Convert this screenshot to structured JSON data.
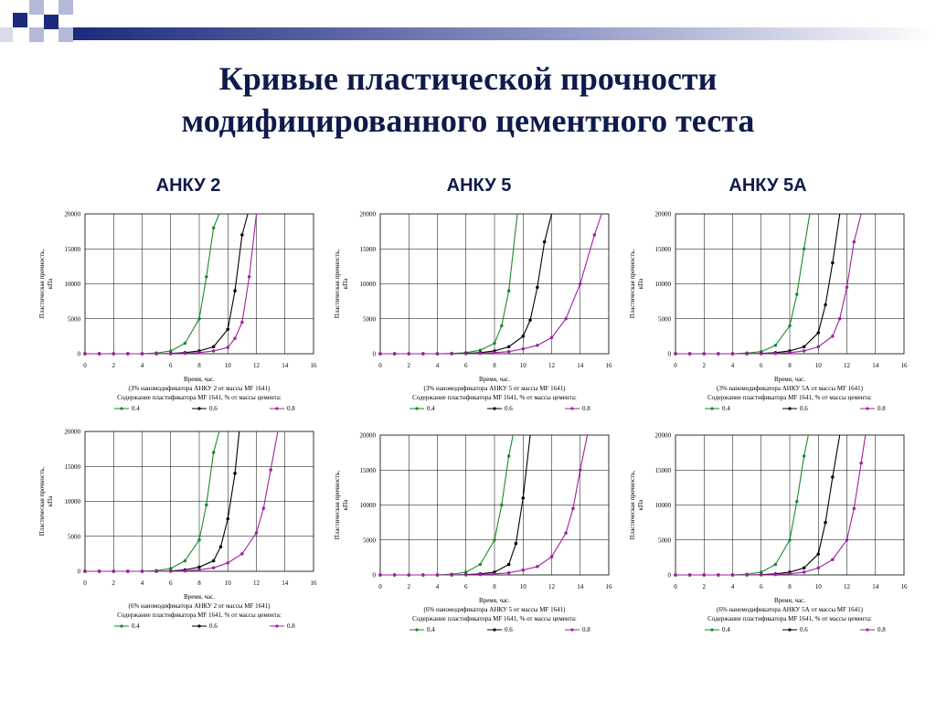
{
  "title_line1": "Кривые пластической прочности",
  "title_line2": "модифицированного цементного теста",
  "columns": [
    "АНКУ 2",
    "АНКУ 5",
    "АНКУ 5А"
  ],
  "colors": {
    "title": "#0f1a4c",
    "deco_blue": "#1c2a7c",
    "deco_light": "#b4b9d8",
    "s04": "#1a8a2a",
    "s06": "#000000",
    "s08": "#a020a0"
  },
  "chart_data": [
    {
      "type": "line",
      "xlabel": "Время, час.",
      "ylabel": "Пластическая прочность, кПа",
      "note": "(3% наномодификатора АНКУ 2 от массы MF 1641)",
      "legend_title": "Содержание пластификатора MF 1641, % от массы цемента:",
      "xlim": [
        0,
        16
      ],
      "ylim": [
        0,
        20000
      ],
      "xticks": [
        "0",
        "2",
        "4",
        "6",
        "8",
        "10",
        "12",
        "14",
        "16"
      ],
      "yticks": [
        "0",
        "5000",
        "10000",
        "15000",
        "20000"
      ],
      "series": [
        {
          "name": "0.4",
          "x": [
            0,
            1,
            2,
            3,
            4,
            5,
            6,
            7,
            8,
            8.5,
            9,
            9.4
          ],
          "y": [
            0,
            0,
            0,
            0,
            0,
            100,
            400,
            1500,
            5000,
            11000,
            18000,
            20000
          ]
        },
        {
          "name": "0.6",
          "x": [
            0,
            1,
            2,
            3,
            4,
            5,
            6,
            7,
            8,
            9,
            10,
            10.5,
            11,
            11.4
          ],
          "y": [
            0,
            0,
            0,
            0,
            0,
            0,
            50,
            150,
            400,
            1000,
            3500,
            9000,
            17000,
            20000
          ]
        },
        {
          "name": "0.8",
          "x": [
            0,
            1,
            2,
            3,
            4,
            5,
            6,
            7,
            8,
            9,
            10,
            10.5,
            11,
            11.5,
            12
          ],
          "y": [
            0,
            0,
            0,
            0,
            0,
            0,
            0,
            50,
            150,
            400,
            900,
            2200,
            4500,
            11000,
            20000
          ]
        }
      ]
    },
    {
      "type": "line",
      "xlabel": "Время, час.",
      "ylabel": "Пластическая прочность, кПа",
      "note": "(3% наномодификатора АНКУ 5 от массы MF 1641)",
      "legend_title": "Содержание пластификатора MF 1641, % от массы цемента:",
      "xlim": [
        0,
        16
      ],
      "ylim": [
        0,
        20000
      ],
      "xticks": [
        "0",
        "2",
        "4",
        "6",
        "8",
        "10",
        "12",
        "14",
        "16"
      ],
      "yticks": [
        "0",
        "5000",
        "10000",
        "15000",
        "20000"
      ],
      "series": [
        {
          "name": "0.4",
          "x": [
            0,
            1,
            2,
            3,
            4,
            5,
            6,
            7,
            8,
            8.5,
            9,
            9.6
          ],
          "y": [
            0,
            0,
            0,
            0,
            0,
            50,
            150,
            500,
            1500,
            4000,
            9000,
            20000
          ]
        },
        {
          "name": "0.6",
          "x": [
            0,
            1,
            2,
            3,
            4,
            5,
            6,
            7,
            8,
            9,
            10,
            10.5,
            11,
            11.5,
            12
          ],
          "y": [
            0,
            0,
            0,
            0,
            0,
            0,
            50,
            150,
            400,
            1000,
            2500,
            4800,
            9500,
            16000,
            20000
          ]
        },
        {
          "name": "0.8",
          "x": [
            0,
            1,
            2,
            3,
            4,
            5,
            6,
            7,
            8,
            9,
            10,
            11,
            12,
            13,
            14,
            15,
            15.5
          ],
          "y": [
            0,
            0,
            0,
            0,
            0,
            0,
            0,
            50,
            150,
            300,
            700,
            1200,
            2300,
            5000,
            10000,
            17000,
            20000
          ]
        }
      ]
    },
    {
      "type": "line",
      "xlabel": "Время, час.",
      "ylabel": "Пластическая прочность, кПа",
      "note": "(3% наномодификатора АНКУ 5А от массы MF 1641)",
      "legend_title": "Содержание пластификатора MF 1641, % от массы цемента:",
      "xlim": [
        0,
        16
      ],
      "ylim": [
        0,
        20000
      ],
      "xticks": [
        "0",
        "2",
        "4",
        "6",
        "8",
        "10",
        "12",
        "14",
        "16"
      ],
      "yticks": [
        "0",
        "5000",
        "10000",
        "15000",
        "20000"
      ],
      "series": [
        {
          "name": "0.4",
          "x": [
            0,
            1,
            2,
            3,
            4,
            5,
            6,
            7,
            8,
            8.5,
            9,
            9.4
          ],
          "y": [
            0,
            0,
            0,
            0,
            0,
            100,
            300,
            1200,
            4000,
            8500,
            15000,
            20000
          ]
        },
        {
          "name": "0.6",
          "x": [
            0,
            1,
            2,
            3,
            4,
            5,
            6,
            7,
            8,
            9,
            10,
            10.5,
            11,
            11.5
          ],
          "y": [
            0,
            0,
            0,
            0,
            0,
            0,
            50,
            150,
            400,
            1000,
            3000,
            7000,
            13000,
            20000
          ]
        },
        {
          "name": "0.8",
          "x": [
            0,
            1,
            2,
            3,
            4,
            5,
            6,
            7,
            8,
            9,
            10,
            11,
            11.5,
            12,
            12.5,
            13
          ],
          "y": [
            0,
            0,
            0,
            0,
            0,
            0,
            0,
            50,
            150,
            400,
            1000,
            2500,
            5000,
            9500,
            16000,
            20000
          ]
        }
      ]
    },
    {
      "type": "line",
      "xlabel": "Время, час.",
      "ylabel": "Пластическая прочность, кПа",
      "note": "(6% наномодификатора АНКУ 2 от массы MF 1641)",
      "legend_title": "Содержание пластификатора MF 1641, % от массы цемента:",
      "xlim": [
        0,
        16
      ],
      "ylim": [
        0,
        20000
      ],
      "xticks": [
        "0",
        "2",
        "4",
        "6",
        "8",
        "10",
        "12",
        "14",
        "16"
      ],
      "yticks": [
        "0",
        "5000",
        "10000",
        "15000",
        "20000"
      ],
      "series": [
        {
          "name": "0.4",
          "x": [
            0,
            1,
            2,
            3,
            4,
            5,
            6,
            7,
            8,
            8.5,
            9,
            9.4
          ],
          "y": [
            0,
            0,
            0,
            0,
            0,
            100,
            400,
            1500,
            4500,
            9500,
            17000,
            20000
          ]
        },
        {
          "name": "0.6",
          "x": [
            0,
            1,
            2,
            3,
            4,
            5,
            6,
            7,
            8,
            9,
            9.5,
            10,
            10.5,
            10.8
          ],
          "y": [
            0,
            0,
            0,
            0,
            0,
            0,
            50,
            200,
            600,
            1500,
            3500,
            7500,
            14000,
            20000
          ]
        },
        {
          "name": "0.8",
          "x": [
            0,
            1,
            2,
            3,
            4,
            5,
            6,
            7,
            8,
            9,
            10,
            11,
            12,
            12.5,
            13,
            13.5
          ],
          "y": [
            0,
            0,
            0,
            0,
            0,
            0,
            0,
            50,
            200,
            500,
            1200,
            2500,
            5500,
            9000,
            14500,
            20000
          ]
        }
      ]
    },
    {
      "type": "line",
      "xlabel": "Время, час.",
      "ylabel": "Пластическая прочность, кПа",
      "note": "(6% наномодификатора АНКУ 5 от массы MF 1641)",
      "legend_title": "Содержание пластификатора MF 1641, % от массы цемента:",
      "xlim": [
        0,
        16
      ],
      "ylim": [
        0,
        20000
      ],
      "xticks": [
        "0",
        "2",
        "4",
        "6",
        "8",
        "10",
        "12",
        "14",
        "16"
      ],
      "yticks": [
        "0",
        "5000",
        "10000",
        "15000",
        "20000"
      ],
      "series": [
        {
          "name": "0.4",
          "x": [
            0,
            1,
            2,
            3,
            4,
            5,
            6,
            7,
            8,
            8.5,
            9,
            9.3
          ],
          "y": [
            0,
            0,
            0,
            0,
            0,
            100,
            400,
            1500,
            5000,
            10000,
            17000,
            20000
          ]
        },
        {
          "name": "0.6",
          "x": [
            0,
            1,
            2,
            3,
            4,
            5,
            6,
            7,
            8,
            9,
            9.5,
            10,
            10.5
          ],
          "y": [
            0,
            0,
            0,
            0,
            0,
            0,
            50,
            150,
            400,
            1500,
            4500,
            11000,
            20000
          ]
        },
        {
          "name": "0.8",
          "x": [
            0,
            1,
            2,
            3,
            4,
            5,
            6,
            7,
            8,
            9,
            10,
            11,
            12,
            13,
            13.5,
            14,
            14.5
          ],
          "y": [
            0,
            0,
            0,
            0,
            0,
            0,
            0,
            50,
            150,
            300,
            700,
            1200,
            2600,
            6000,
            9500,
            15000,
            20000
          ]
        }
      ]
    },
    {
      "type": "line",
      "xlabel": "Время, час.",
      "ylabel": "Пластическая прочность, кПа",
      "note": "(6% наномодификатора АНКУ 5А от массы MF 1641)",
      "legend_title": "Содержание пластификатора MF 1641, % от массы цемента:",
      "xlim": [
        0,
        16
      ],
      "ylim": [
        0,
        20000
      ],
      "xticks": [
        "0",
        "2",
        "4",
        "6",
        "8",
        "10",
        "12",
        "14",
        "16"
      ],
      "yticks": [
        "0",
        "5000",
        "10000",
        "15000",
        "20000"
      ],
      "series": [
        {
          "name": "0.4",
          "x": [
            0,
            1,
            2,
            3,
            4,
            5,
            6,
            7,
            8,
            8.5,
            9,
            9.3
          ],
          "y": [
            0,
            0,
            0,
            0,
            0,
            100,
            400,
            1500,
            5000,
            10500,
            17000,
            20000
          ]
        },
        {
          "name": "0.6",
          "x": [
            0,
            1,
            2,
            3,
            4,
            5,
            6,
            7,
            8,
            9,
            10,
            10.5,
            11,
            11.5
          ],
          "y": [
            0,
            0,
            0,
            0,
            0,
            0,
            50,
            150,
            400,
            1000,
            3000,
            7500,
            14000,
            20000
          ]
        },
        {
          "name": "0.8",
          "x": [
            0,
            1,
            2,
            3,
            4,
            5,
            6,
            7,
            8,
            9,
            10,
            11,
            12,
            12.5,
            13,
            13.3
          ],
          "y": [
            0,
            0,
            0,
            0,
            0,
            0,
            0,
            50,
            150,
            400,
            1000,
            2200,
            5000,
            9500,
            16000,
            20000
          ]
        }
      ]
    }
  ]
}
